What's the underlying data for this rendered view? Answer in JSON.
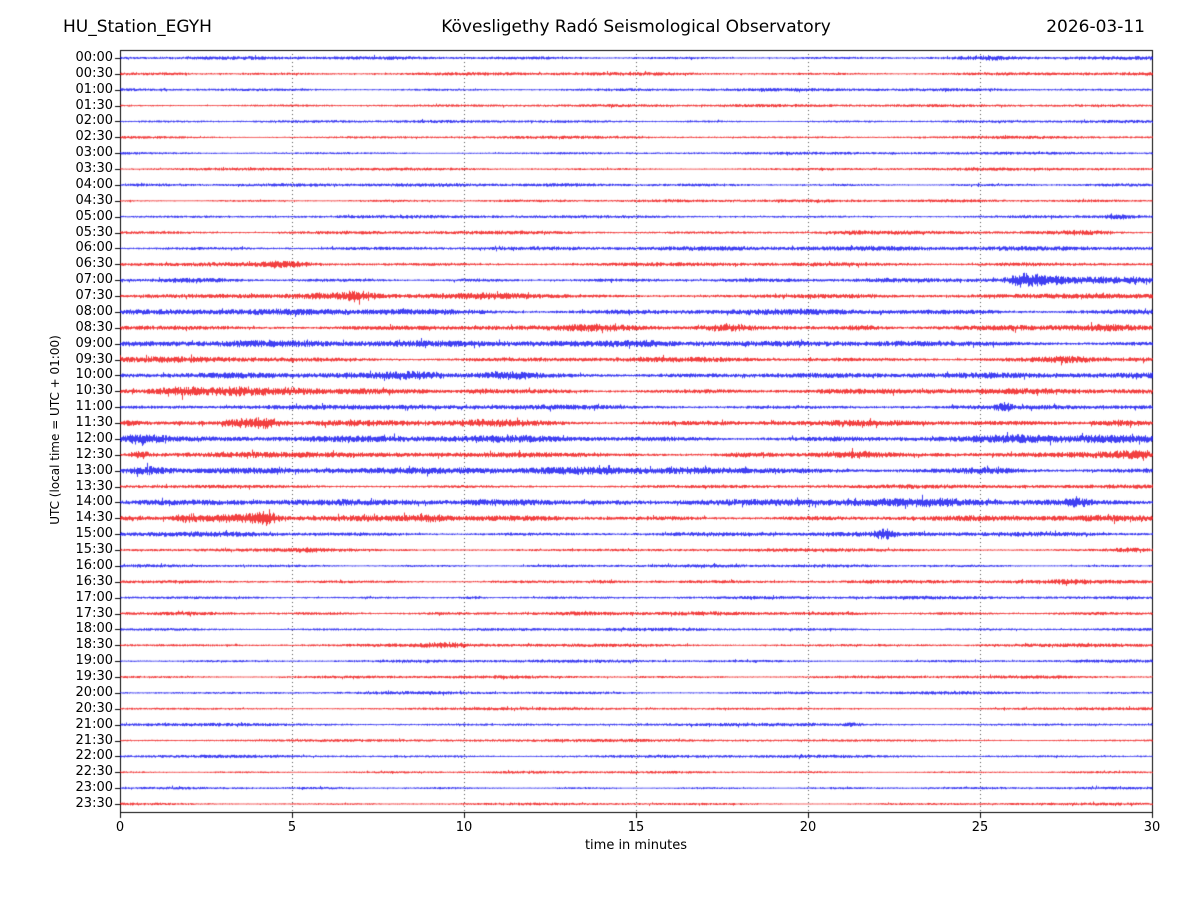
{
  "chart_data": {
    "type": "line",
    "subtype": "helicorder-seismogram",
    "station_title": "HU_Station_EGYH",
    "title": "Kövesligethy Radó Seismological Observatory",
    "date": "2026-03-11",
    "xlabel": "time in minutes",
    "ylabel": "UTC (local time = UTC + 01:00)",
    "xlim": [
      0,
      30
    ],
    "xticks": [
      0,
      5,
      10,
      15,
      20,
      25,
      30
    ],
    "gridlines_x": [
      5,
      10,
      15,
      20,
      25
    ],
    "grid": "dotted-vertical",
    "minutes_per_row": 30,
    "colors": {
      "blue": "#0000ee",
      "red": "#ee0000",
      "axis": "#000000",
      "grid": "#555555"
    },
    "legend_position": "none",
    "rows": [
      {
        "label": "00:00",
        "color": "blue",
        "noise": 1.3,
        "events": [
          {
            "t": 25.2,
            "amp": 1.3,
            "w": 0.5
          }
        ]
      },
      {
        "label": "00:30",
        "color": "red",
        "noise": 1.3,
        "events": [
          {
            "t": 1.5,
            "amp": 0.7,
            "w": 0.5
          }
        ]
      },
      {
        "label": "01:00",
        "color": "blue",
        "noise": 1.2,
        "events": []
      },
      {
        "label": "01:30",
        "color": "red",
        "noise": 1.1,
        "events": []
      },
      {
        "label": "02:00",
        "color": "blue",
        "noise": 1.1,
        "events": []
      },
      {
        "label": "02:30",
        "color": "red",
        "noise": 1.1,
        "events": []
      },
      {
        "label": "03:00",
        "color": "blue",
        "noise": 1.1,
        "events": []
      },
      {
        "label": "03:30",
        "color": "red",
        "noise": 1.1,
        "events": []
      },
      {
        "label": "04:00",
        "color": "blue",
        "noise": 1.3,
        "events": []
      },
      {
        "label": "04:30",
        "color": "red",
        "noise": 1.1,
        "events": []
      },
      {
        "label": "05:00",
        "color": "blue",
        "noise": 1.2,
        "events": [
          {
            "t": 29.0,
            "amp": 2.0,
            "w": 0.35
          }
        ]
      },
      {
        "label": "05:30",
        "color": "red",
        "noise": 1.4,
        "events": [
          {
            "t": 21.3,
            "amp": 1.1,
            "w": 0.25
          },
          {
            "t": 28.0,
            "amp": 1.8,
            "w": 0.6
          }
        ]
      },
      {
        "label": "06:00",
        "color": "blue",
        "noise": 1.7,
        "events": []
      },
      {
        "label": "06:30",
        "color": "red",
        "noise": 1.5,
        "events": [
          {
            "t": 4.8,
            "amp": 3.0,
            "w": 0.45
          },
          {
            "t": 25.8,
            "amp": 1.2,
            "w": 0.8
          }
        ]
      },
      {
        "label": "07:00",
        "color": "blue",
        "noise": 1.7,
        "events": [
          {
            "t": 1.8,
            "amp": 0.9,
            "w": 0.8
          },
          {
            "t": 26.3,
            "amp": 5.5,
            "w": 0.3
          },
          {
            "t": 27.0,
            "amp": 2.5,
            "w": 0.5
          },
          {
            "t": 28.8,
            "amp": 2.4,
            "w": 0.8
          }
        ]
      },
      {
        "label": "07:30",
        "color": "red",
        "noise": 1.8,
        "events": [
          {
            "t": 5.9,
            "amp": 2.0,
            "w": 0.5
          },
          {
            "t": 6.9,
            "amp": 4.5,
            "w": 0.35
          },
          {
            "t": 10.5,
            "amp": 1.5,
            "w": 0.8
          },
          {
            "t": 21.0,
            "amp": 1.0,
            "w": 1.0
          }
        ]
      },
      {
        "label": "08:00",
        "color": "blue",
        "noise": 2.2,
        "events": [
          {
            "t": 1.5,
            "amp": 1.2,
            "w": 1.0
          },
          {
            "t": 8.0,
            "amp": 0.9,
            "w": 1.0
          }
        ]
      },
      {
        "label": "08:30",
        "color": "red",
        "noise": 2.0,
        "events": [
          {
            "t": 13.8,
            "amp": 1.4,
            "w": 0.6
          },
          {
            "t": 17.6,
            "amp": 3.4,
            "w": 0.5
          },
          {
            "t": 21.6,
            "amp": 1.7,
            "w": 0.5
          },
          {
            "t": 28.6,
            "amp": 2.2,
            "w": 0.6
          }
        ]
      },
      {
        "label": "09:00",
        "color": "blue",
        "noise": 2.2,
        "events": [
          {
            "t": 0.8,
            "amp": 1.4,
            "w": 0.8
          },
          {
            "t": 5.0,
            "amp": 1.1,
            "w": 1.5
          },
          {
            "t": 15.2,
            "amp": 1.4,
            "w": 0.4
          },
          {
            "t": 22.5,
            "amp": 1.3,
            "w": 0.8
          }
        ]
      },
      {
        "label": "09:30",
        "color": "red",
        "noise": 1.9,
        "events": [
          {
            "t": 2.0,
            "amp": 0.9,
            "w": 1.0
          },
          {
            "t": 27.5,
            "amp": 1.7,
            "w": 0.5
          }
        ]
      },
      {
        "label": "10:00",
        "color": "blue",
        "noise": 2.1,
        "events": [
          {
            "t": 8.6,
            "amp": 2.4,
            "w": 0.7
          },
          {
            "t": 11.2,
            "amp": 2.7,
            "w": 0.6
          },
          {
            "t": 19.5,
            "amp": 1.4,
            "w": 1.2
          },
          {
            "t": 24.0,
            "amp": 1.1,
            "w": 1.0
          }
        ]
      },
      {
        "label": "10:30",
        "color": "red",
        "noise": 2.1,
        "events": [
          {
            "t": 1.7,
            "amp": 2.4,
            "w": 0.5
          },
          {
            "t": 3.6,
            "amp": 2.6,
            "w": 0.8
          },
          {
            "t": 5.2,
            "amp": 1.9,
            "w": 0.4
          },
          {
            "t": 10.5,
            "amp": 1.4,
            "w": 0.3
          }
        ]
      },
      {
        "label": "11:00",
        "color": "blue",
        "noise": 1.8,
        "events": [
          {
            "t": 4.5,
            "amp": 1.1,
            "w": 1.0
          },
          {
            "t": 25.7,
            "amp": 3.5,
            "w": 0.15
          }
        ]
      },
      {
        "label": "11:30",
        "color": "red",
        "noise": 2.2,
        "events": [
          {
            "t": 0.3,
            "amp": 1.8,
            "w": 0.3
          },
          {
            "t": 3.4,
            "amp": 2.8,
            "w": 0.3
          },
          {
            "t": 4.1,
            "amp": 6.0,
            "w": 0.35
          },
          {
            "t": 10.8,
            "amp": 1.8,
            "w": 0.8
          },
          {
            "t": 29.0,
            "amp": 2.4,
            "w": 0.6
          }
        ]
      },
      {
        "label": "12:00",
        "color": "blue",
        "noise": 2.4,
        "events": [
          {
            "t": 0.6,
            "amp": 5.0,
            "w": 0.5
          },
          {
            "t": 12.0,
            "amp": 0.9,
            "w": 1.5
          },
          {
            "t": 26.5,
            "amp": 1.9,
            "w": 0.8
          },
          {
            "t": 28.5,
            "amp": 1.9,
            "w": 0.5
          }
        ]
      },
      {
        "label": "12:30",
        "color": "red",
        "noise": 2.1,
        "events": [
          {
            "t": 0.6,
            "amp": 3.5,
            "w": 0.2
          },
          {
            "t": 18.2,
            "amp": 1.8,
            "w": 0.5
          },
          {
            "t": 21.5,
            "amp": 2.1,
            "w": 0.7
          },
          {
            "t": 29.3,
            "amp": 2.1,
            "w": 0.4
          }
        ]
      },
      {
        "label": "13:00",
        "color": "blue",
        "noise": 2.3,
        "events": [
          {
            "t": 0.9,
            "amp": 3.5,
            "w": 0.4
          },
          {
            "t": 13.0,
            "amp": 1.4,
            "w": 1.0
          },
          {
            "t": 16.8,
            "amp": 2.1,
            "w": 0.8
          },
          {
            "t": 25.3,
            "amp": 1.7,
            "w": 0.8
          }
        ]
      },
      {
        "label": "13:30",
        "color": "red",
        "noise": 1.5,
        "events": []
      },
      {
        "label": "14:00",
        "color": "blue",
        "noise": 2.2,
        "events": [
          {
            "t": 10.8,
            "amp": 1.7,
            "w": 1.0
          },
          {
            "t": 14.5,
            "amp": 1.4,
            "w": 0.8
          },
          {
            "t": 19.5,
            "amp": 1.9,
            "w": 1.5
          },
          {
            "t": 23.5,
            "amp": 2.1,
            "w": 1.0
          },
          {
            "t": 27.8,
            "amp": 4.0,
            "w": 0.2
          }
        ]
      },
      {
        "label": "14:30",
        "color": "red",
        "noise": 2.2,
        "events": [
          {
            "t": 0.3,
            "amp": 1.8,
            "w": 0.4
          },
          {
            "t": 2.0,
            "amp": 3.4,
            "w": 0.3
          },
          {
            "t": 3.3,
            "amp": 2.8,
            "w": 0.5
          },
          {
            "t": 4.2,
            "amp": 6.5,
            "w": 0.25
          },
          {
            "t": 9.0,
            "amp": 2.4,
            "w": 0.4
          }
        ]
      },
      {
        "label": "15:00",
        "color": "blue",
        "noise": 1.7,
        "events": [
          {
            "t": 3.5,
            "amp": 1.1,
            "w": 1.0
          },
          {
            "t": 22.2,
            "amp": 4.0,
            "w": 0.18
          }
        ]
      },
      {
        "label": "15:30",
        "color": "red",
        "noise": 1.3,
        "events": [
          {
            "t": 5.5,
            "amp": 1.1,
            "w": 0.3
          },
          {
            "t": 29.3,
            "amp": 1.4,
            "w": 0.4
          }
        ]
      },
      {
        "label": "16:00",
        "color": "blue",
        "noise": 1.2,
        "events": []
      },
      {
        "label": "16:30",
        "color": "red",
        "noise": 1.5,
        "events": [
          {
            "t": 14.2,
            "amp": 1.4,
            "w": 0.4
          },
          {
            "t": 27.6,
            "amp": 1.4,
            "w": 0.3
          }
        ]
      },
      {
        "label": "17:00",
        "color": "blue",
        "noise": 1.2,
        "events": [
          {
            "t": 10.2,
            "amp": 1.1,
            "w": 0.3
          }
        ]
      },
      {
        "label": "17:30",
        "color": "red",
        "noise": 1.5,
        "events": []
      },
      {
        "label": "18:00",
        "color": "blue",
        "noise": 1.2,
        "events": []
      },
      {
        "label": "18:30",
        "color": "red",
        "noise": 1.3,
        "events": [
          {
            "t": 9.5,
            "amp": 2.0,
            "w": 0.5
          }
        ]
      },
      {
        "label": "19:00",
        "color": "blue",
        "noise": 1.2,
        "events": []
      },
      {
        "label": "19:30",
        "color": "red",
        "noise": 1.2,
        "events": []
      },
      {
        "label": "20:00",
        "color": "blue",
        "noise": 1.2,
        "events": []
      },
      {
        "label": "20:30",
        "color": "red",
        "noise": 1.1,
        "events": []
      },
      {
        "label": "21:00",
        "color": "blue",
        "noise": 1.2,
        "events": [
          {
            "t": 21.3,
            "amp": 1.4,
            "w": 0.2
          }
        ]
      },
      {
        "label": "21:30",
        "color": "red",
        "noise": 1.1,
        "events": []
      },
      {
        "label": "22:00",
        "color": "blue",
        "noise": 1.2,
        "events": []
      },
      {
        "label": "22:30",
        "color": "red",
        "noise": 1.0,
        "events": []
      },
      {
        "label": "23:00",
        "color": "blue",
        "noise": 1.1,
        "events": []
      },
      {
        "label": "23:30",
        "color": "red",
        "noise": 1.0,
        "events": []
      }
    ]
  }
}
